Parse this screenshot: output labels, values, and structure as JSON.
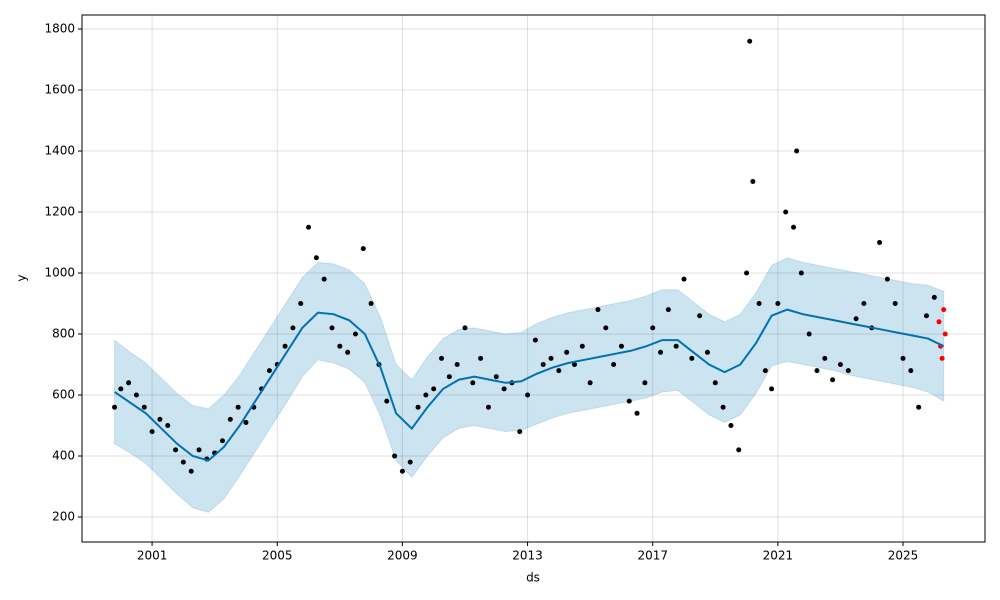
{
  "chart_data": {
    "type": "forecast",
    "xlabel": "ds",
    "ylabel": "y",
    "xlim": [
      1998.76,
      2027.62
    ],
    "xticks": [
      2001,
      2005,
      2009,
      2013,
      2017,
      2021,
      2025
    ],
    "ylim": [
      118,
      1846
    ],
    "yticks": [
      200,
      400,
      600,
      800,
      1000,
      1200,
      1400,
      1600,
      1800
    ],
    "grid": true,
    "forecast": {
      "color": "#0072b2",
      "band_color": "#0072b2",
      "x": [
        1999.8,
        2000.3,
        2000.8,
        2001.3,
        2001.8,
        2002.3,
        2002.8,
        2003.3,
        2003.8,
        2004.3,
        2004.8,
        2005.3,
        2005.8,
        2006.3,
        2006.8,
        2007.3,
        2007.8,
        2008.3,
        2008.8,
        2009.3,
        2009.8,
        2010.3,
        2010.8,
        2011.3,
        2011.8,
        2012.3,
        2012.8,
        2013.3,
        2013.8,
        2014.3,
        2014.8,
        2015.3,
        2015.8,
        2016.3,
        2016.8,
        2017.3,
        2017.8,
        2018.3,
        2018.8,
        2019.3,
        2019.8,
        2020.3,
        2020.8,
        2021.3,
        2021.8,
        2022.3,
        2022.8,
        2023.3,
        2023.8,
        2024.3,
        2024.8,
        2025.3,
        2025.8,
        2026.3
      ],
      "values": [
        610,
        575,
        540,
        490,
        440,
        400,
        385,
        430,
        500,
        580,
        660,
        740,
        820,
        870,
        865,
        845,
        800,
        690,
        540,
        490,
        560,
        620,
        650,
        660,
        650,
        640,
        645,
        670,
        690,
        705,
        715,
        725,
        735,
        745,
        760,
        780,
        780,
        740,
        700,
        675,
        700,
        770,
        860,
        880,
        865,
        855,
        845,
        835,
        825,
        815,
        805,
        795,
        785,
        760
      ],
      "lower": [
        440,
        410,
        375,
        325,
        275,
        230,
        215,
        260,
        335,
        415,
        495,
        575,
        660,
        715,
        705,
        685,
        640,
        530,
        385,
        330,
        400,
        460,
        490,
        500,
        490,
        480,
        485,
        505,
        525,
        540,
        550,
        560,
        570,
        580,
        590,
        610,
        615,
        575,
        535,
        510,
        535,
        605,
        695,
        710,
        700,
        690,
        680,
        665,
        655,
        645,
        635,
        625,
        610,
        580
      ],
      "upper": [
        780,
        740,
        705,
        655,
        605,
        565,
        555,
        600,
        665,
        745,
        825,
        905,
        985,
        1035,
        1030,
        1010,
        965,
        855,
        700,
        650,
        725,
        785,
        815,
        820,
        810,
        800,
        805,
        835,
        855,
        870,
        880,
        890,
        900,
        910,
        925,
        945,
        945,
        905,
        865,
        840,
        865,
        935,
        1025,
        1050,
        1035,
        1025,
        1015,
        1005,
        995,
        985,
        975,
        965,
        960,
        940
      ]
    },
    "observed": {
      "color": "#000000",
      "x": [
        1999.8,
        2000.0,
        2000.25,
        2000.5,
        2000.75,
        2001.0,
        2001.25,
        2001.5,
        2001.75,
        2002.0,
        2002.25,
        2002.5,
        2002.75,
        2003.0,
        2003.25,
        2003.5,
        2003.75,
        2004.0,
        2004.25,
        2004.5,
        2004.75,
        2005.0,
        2005.25,
        2005.5,
        2005.75,
        2006.0,
        2006.25,
        2006.5,
        2006.75,
        2007.0,
        2007.25,
        2007.5,
        2007.75,
        2008.0,
        2008.25,
        2008.5,
        2008.75,
        2009.0,
        2009.25,
        2009.5,
        2009.75,
        2010.0,
        2010.25,
        2010.5,
        2010.75,
        2011.0,
        2011.25,
        2011.5,
        2011.75,
        2012.0,
        2012.25,
        2012.5,
        2012.75,
        2013.0,
        2013.25,
        2013.5,
        2013.75,
        2014.0,
        2014.25,
        2014.5,
        2014.75,
        2015.0,
        2015.25,
        2015.5,
        2015.75,
        2016.0,
        2016.25,
        2016.5,
        2016.75,
        2017.0,
        2017.25,
        2017.5,
        2017.75,
        2018.0,
        2018.25,
        2018.5,
        2018.75,
        2019.0,
        2019.25,
        2019.5,
        2019.75,
        2020.0,
        2020.1,
        2020.2,
        2020.4,
        2020.6,
        2020.8,
        2021.0,
        2021.25,
        2021.5,
        2021.6,
        2021.75,
        2022.0,
        2022.25,
        2022.5,
        2022.75,
        2023.0,
        2023.25,
        2023.5,
        2023.75,
        2024.0,
        2024.25,
        2024.5,
        2024.75,
        2025.0,
        2025.25,
        2025.5,
        2025.75,
        2026.0
      ],
      "values": [
        560,
        620,
        640,
        600,
        560,
        480,
        520,
        500,
        420,
        380,
        350,
        420,
        390,
        410,
        450,
        520,
        560,
        510,
        560,
        620,
        680,
        700,
        760,
        820,
        900,
        1150,
        1050,
        980,
        820,
        760,
        740,
        800,
        1080,
        900,
        700,
        580,
        400,
        350,
        380,
        560,
        600,
        620,
        720,
        660,
        700,
        820,
        640,
        720,
        560,
        660,
        620,
        640,
        480,
        600,
        780,
        700,
        720,
        680,
        740,
        700,
        760,
        640,
        880,
        820,
        700,
        760,
        580,
        540,
        640,
        820,
        740,
        880,
        760,
        980,
        720,
        860,
        740,
        640,
        560,
        500,
        420,
        1000,
        1760,
        1300,
        900,
        680,
        620,
        900,
        1200,
        1150,
        1400,
        1000,
        800,
        680,
        720,
        650,
        700,
        680,
        850,
        900,
        820,
        1100,
        980,
        900,
        720,
        680,
        560,
        860,
        920
      ]
    },
    "highlighted": {
      "color": "#ff0000",
      "x": [
        2026.15,
        2026.2,
        2026.25,
        2026.3,
        2026.35
      ],
      "values": [
        840,
        760,
        720,
        880,
        800
      ]
    }
  }
}
